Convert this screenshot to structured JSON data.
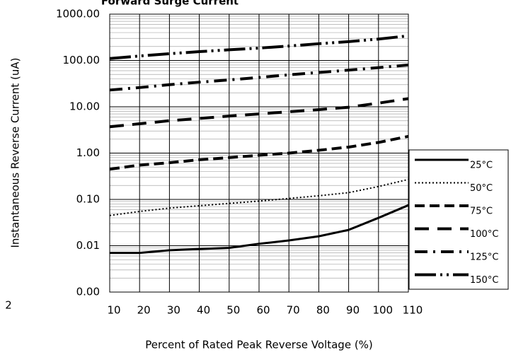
{
  "chart_data": {
    "type": "line",
    "title": "Forward Surge Current",
    "x_label": "Percent of  Rated Peak Reverse Voltage (%)",
    "y_label": "Instantaneous Reverse Current (uA)",
    "annotation": "2",
    "log_y": true,
    "grid": true,
    "legend": "right",
    "x": [
      10,
      20,
      30,
      40,
      50,
      60,
      70,
      80,
      90,
      100,
      110
    ],
    "xlim": [
      10,
      110
    ],
    "xticks": [
      10,
      20,
      30,
      40,
      50,
      60,
      70,
      80,
      90,
      100,
      110
    ],
    "ylim": [
      0.001,
      1000
    ],
    "yticks": [
      {
        "value": 0.001,
        "label": "0.00"
      },
      {
        "value": 0.01,
        "label": "0.01"
      },
      {
        "value": 0.1,
        "label": "0.10"
      },
      {
        "value": 1,
        "label": "1.00"
      },
      {
        "value": 10,
        "label": "10.00"
      },
      {
        "value": 100,
        "label": "100.00"
      },
      {
        "value": 1000,
        "label": "1000.00"
      }
    ],
    "series": [
      {
        "name": "25°C",
        "color": "#000000",
        "dash": "",
        "width": 3,
        "values": [
          0.007,
          0.007,
          0.008,
          0.0085,
          0.009,
          0.011,
          0.013,
          0.016,
          0.022,
          0.04,
          0.075
        ]
      },
      {
        "name": "50°C",
        "color": "#000000",
        "dash": "2 3",
        "width": 2,
        "values": [
          0.045,
          0.055,
          0.065,
          0.073,
          0.082,
          0.092,
          0.105,
          0.12,
          0.14,
          0.19,
          0.27
        ]
      },
      {
        "name": "75°C",
        "color": "#000000",
        "dash": "14 7",
        "width": 4,
        "values": [
          0.45,
          0.55,
          0.62,
          0.72,
          0.8,
          0.9,
          1.0,
          1.15,
          1.35,
          1.7,
          2.3
        ]
      },
      {
        "name": "100°C",
        "color": "#000000",
        "dash": "20 12",
        "width": 4,
        "values": [
          3.7,
          4.3,
          5,
          5.6,
          6.3,
          7,
          7.8,
          8.7,
          9.8,
          12,
          15
        ]
      },
      {
        "name": "125°C",
        "color": "#000000",
        "dash": "18 8 3 8",
        "width": 4,
        "values": [
          23,
          26,
          30,
          34,
          38,
          43,
          49,
          55,
          62,
          70,
          80
        ]
      },
      {
        "name": "150°C",
        "color": "#000000",
        "dash": "30 6 3 6 3 6",
        "width": 4,
        "values": [
          110,
          125,
          140,
          155,
          170,
          185,
          205,
          230,
          255,
          290,
          340
        ]
      }
    ]
  }
}
